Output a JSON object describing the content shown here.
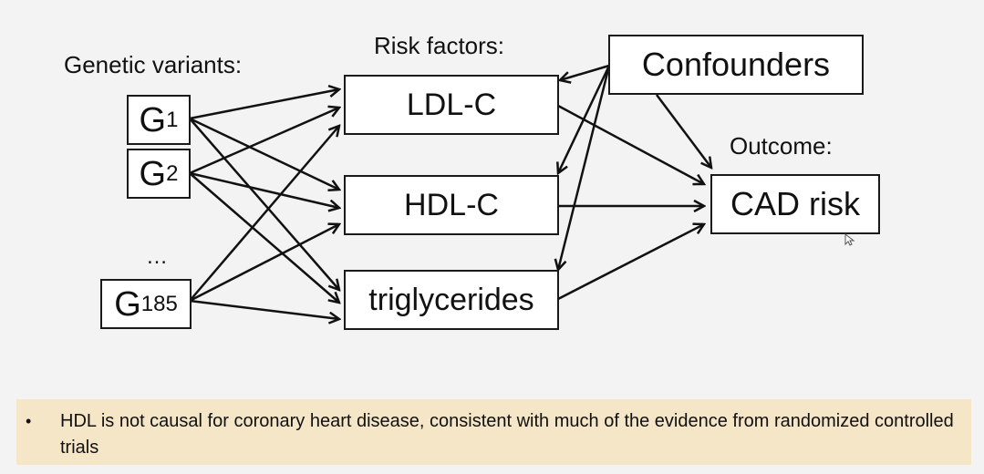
{
  "diagram": {
    "labels": {
      "genetic_variants": "Genetic variants:",
      "risk_factors": "Risk factors:",
      "outcome": "Outcome:",
      "ellipsis": "…"
    },
    "genetic_nodes": [
      {
        "base": "G",
        "sub": "1"
      },
      {
        "base": "G",
        "sub": "2"
      },
      {
        "base": "G",
        "sub": "185"
      }
    ],
    "risk_factor_nodes": [
      "LDL-C",
      "HDL-C",
      "triglycerides"
    ],
    "confounders": "Confounders",
    "outcome_node": "CAD risk"
  },
  "note": {
    "bullet": "•",
    "text": "HDL is not causal for coronary heart disease, consistent with much of the evidence from randomized controlled trials"
  }
}
